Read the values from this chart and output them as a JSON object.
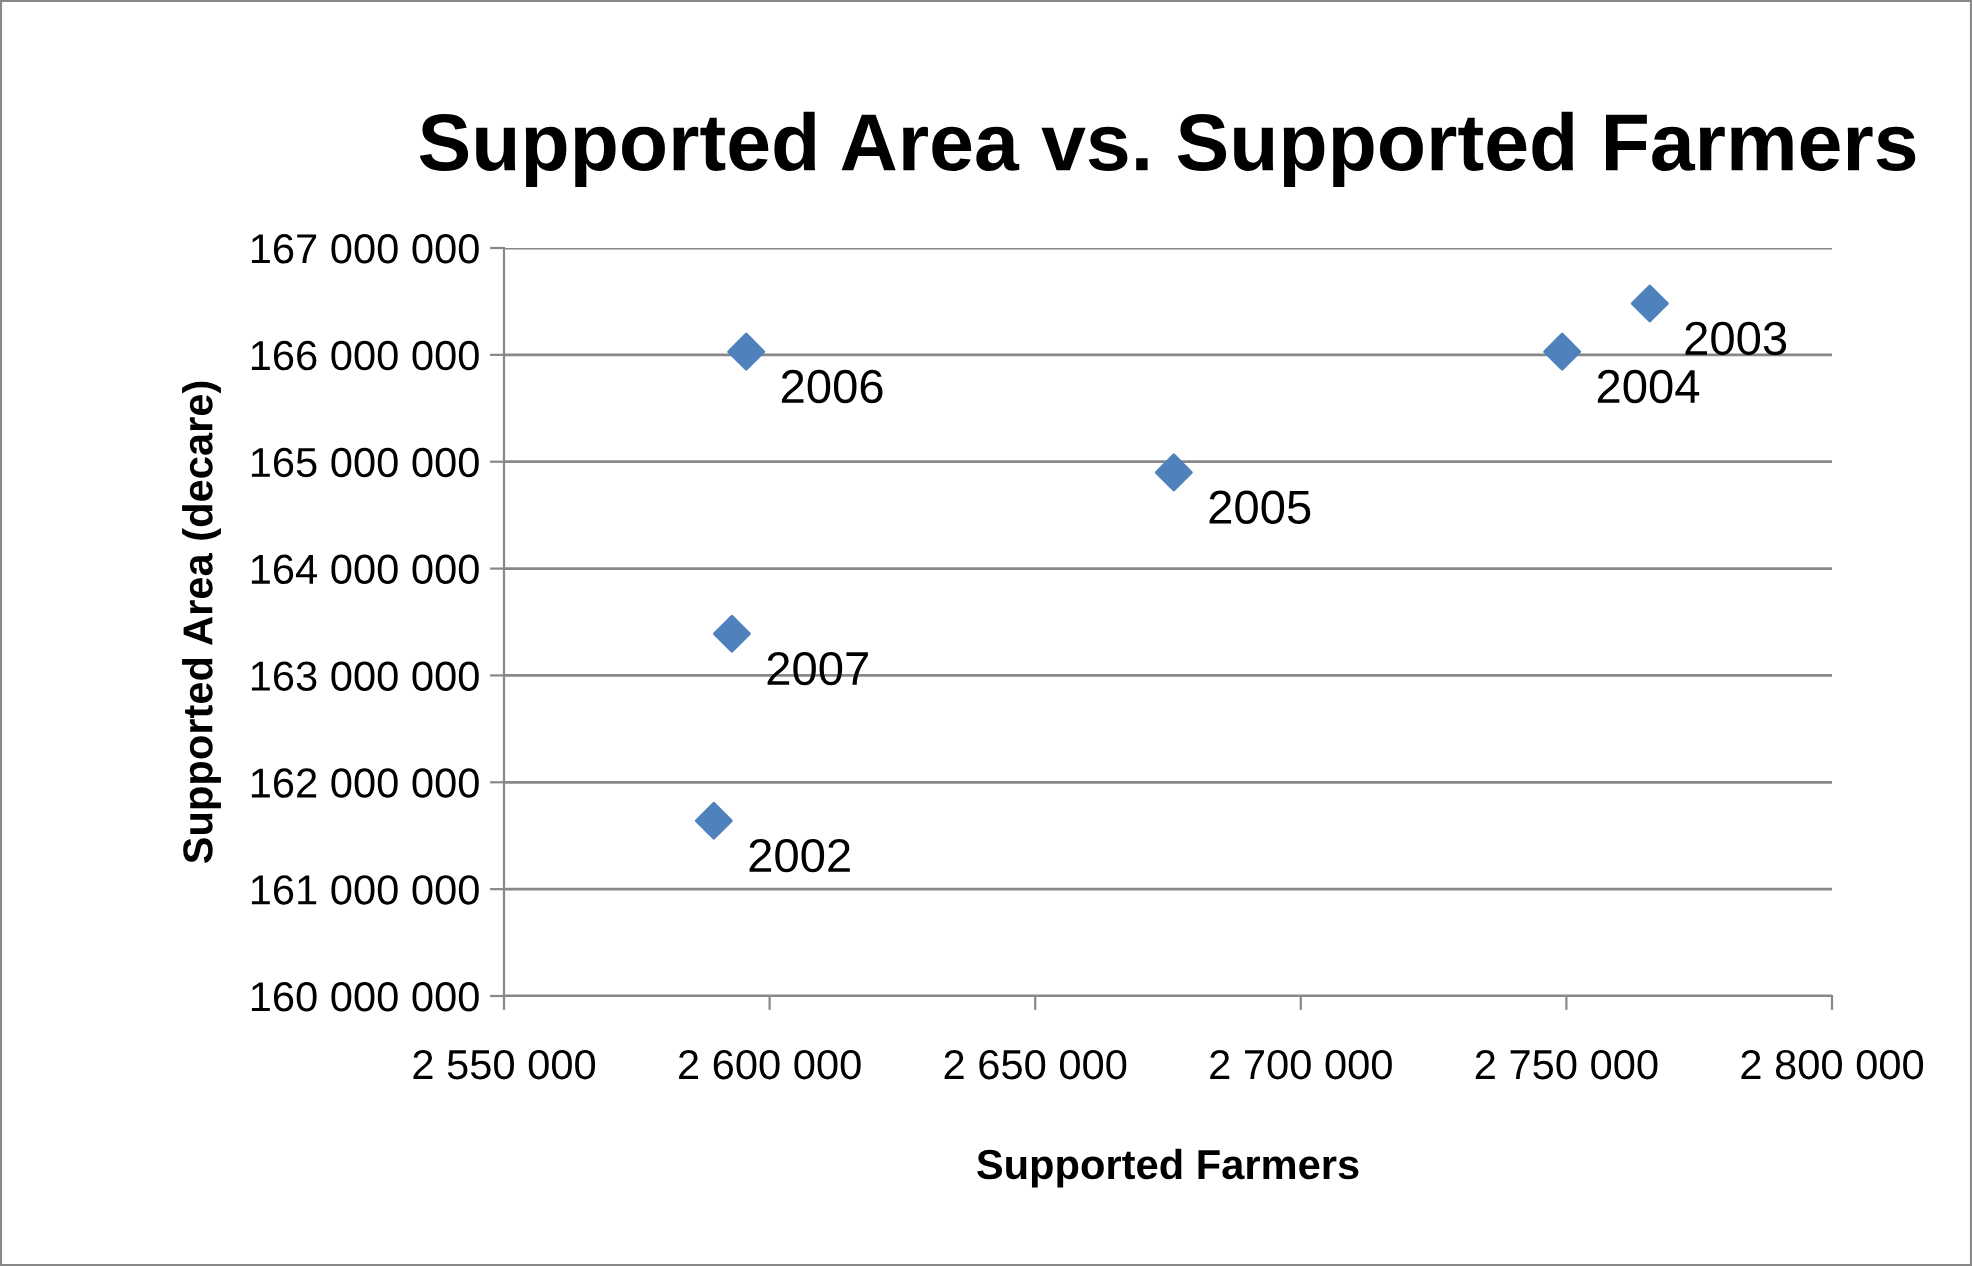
{
  "chart_data": {
    "type": "scatter",
    "title": "Supported Area vs. Supported Farmers",
    "xlabel": "Supported Farmers",
    "ylabel": "Supported Area (decare)",
    "x": [
      2589500,
      2765700,
      2749200,
      2676100,
      2595600,
      2592900
    ],
    "values": [
      161640000,
      166480000,
      166030000,
      164900000,
      166030000,
      163390000
    ],
    "color": "#4f81bd",
    "marker": "diamond",
    "grid": "y",
    "legend": false,
    "xlim": [
      2550000,
      2800000
    ],
    "xticks": [
      {
        "value": 2550000,
        "label": "2 550 000"
      },
      {
        "value": 2600000,
        "label": "2 600 000"
      },
      {
        "value": 2650000,
        "label": "2 650 000"
      },
      {
        "value": 2700000,
        "label": "2 700 000"
      },
      {
        "value": 2750000,
        "label": "2 750 000"
      },
      {
        "value": 2800000,
        "label": "2 800 000"
      }
    ],
    "ylim": [
      160000000,
      167000000
    ],
    "yticks": [
      {
        "value": 160000000,
        "label": "160 000 000"
      },
      {
        "value": 161000000,
        "label": "161 000 000"
      },
      {
        "value": 162000000,
        "label": "162 000 000"
      },
      {
        "value": 163000000,
        "label": "163 000 000"
      },
      {
        "value": 164000000,
        "label": "164 000 000"
      },
      {
        "value": 165000000,
        "label": "165 000 000"
      },
      {
        "value": 166000000,
        "label": "166 000 000"
      },
      {
        "value": 167000000,
        "label": "167 000 000"
      }
    ],
    "annotations": [
      {
        "text": "2002",
        "x": 2589500,
        "y": 161640000
      },
      {
        "text": "2003",
        "x": 2765700,
        "y": 166480000
      },
      {
        "text": "2004",
        "x": 2749200,
        "y": 166030000
      },
      {
        "text": "2005",
        "x": 2676100,
        "y": 164900000
      },
      {
        "text": "2006",
        "x": 2595600,
        "y": 166030000
      },
      {
        "text": "2007",
        "x": 2592900,
        "y": 163390000
      }
    ]
  }
}
